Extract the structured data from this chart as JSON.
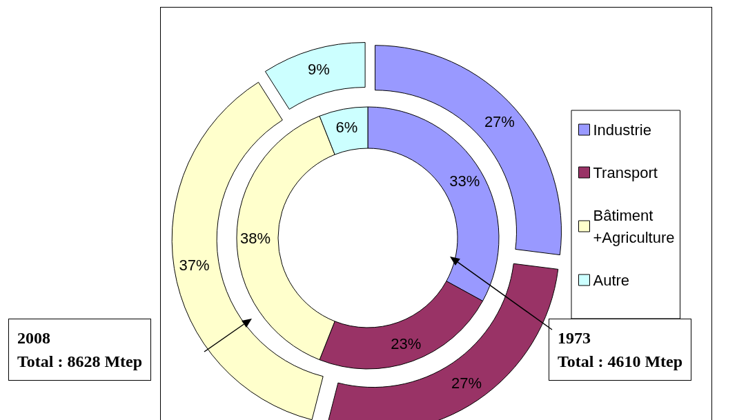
{
  "chart_data": {
    "type": "donut",
    "categories": [
      "Industrie",
      "Transport",
      "Bâtiment\n+Agriculture",
      "Autre"
    ],
    "colors": [
      "#9999ff",
      "#993366",
      "#ffffcc",
      "#ccffff"
    ],
    "series": [
      {
        "name": "1973",
        "values": [
          33,
          23,
          38,
          6
        ],
        "value_labels": [
          "33%",
          "23%",
          "38%",
          "6%"
        ]
      },
      {
        "name": "2008",
        "values": [
          27,
          27,
          37,
          9
        ],
        "value_labels": [
          "27%",
          "27%",
          "37%",
          "9%"
        ]
      }
    ],
    "annotations": [
      "Total : 4610 Mtep",
      "Total : 8628 Mtep"
    ],
    "legend": "right"
  }
}
